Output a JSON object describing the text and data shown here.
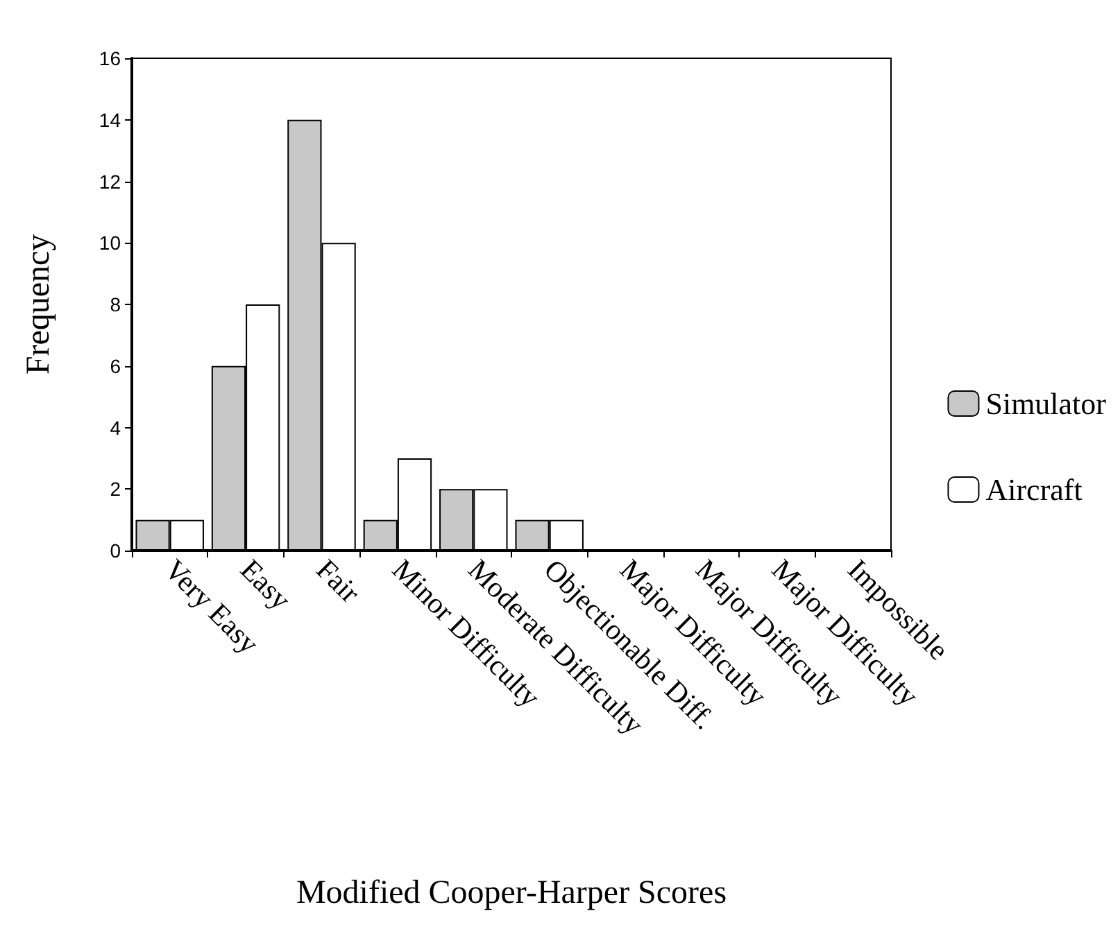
{
  "chart_data": {
    "type": "bar",
    "xlabel": "Modified Cooper-Harper Scores",
    "ylabel": "Frequency",
    "categories": [
      "Very Easy",
      "Easy",
      "Fair",
      "Minor Difficulty",
      "Moderate Difficulty",
      "Objectionable Diff.",
      "Major Difficulty",
      "Major Difficulty",
      "Major Difficulty",
      "Impossible"
    ],
    "series": [
      {
        "name": "Simulator",
        "color": "#c8c8c8",
        "values": [
          1,
          6,
          14,
          1,
          2,
          1,
          0,
          0,
          0,
          0
        ]
      },
      {
        "name": "Aircraft",
        "color": "#ffffff",
        "values": [
          1,
          8,
          10,
          3,
          2,
          1,
          0,
          0,
          0,
          0
        ]
      }
    ],
    "ylim": [
      0,
      16
    ],
    "yticks": [
      0,
      2,
      4,
      6,
      8,
      10,
      12,
      14,
      16
    ],
    "grid": false,
    "legend": "right"
  }
}
